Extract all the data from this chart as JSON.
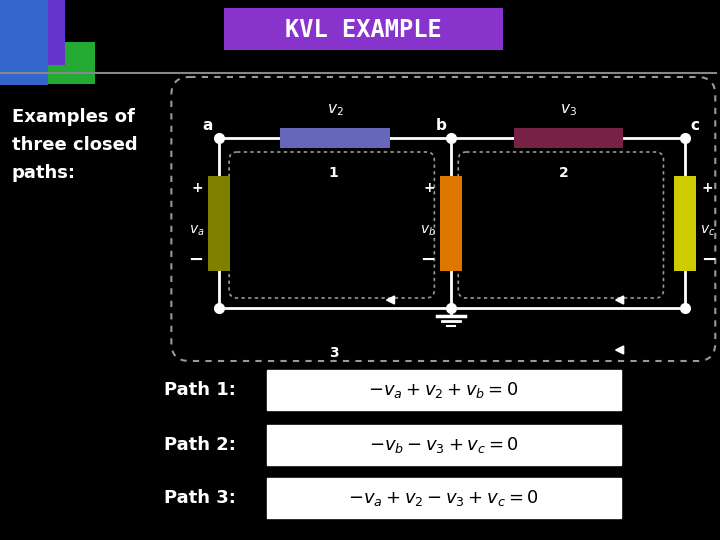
{
  "title": "KVL EXAMPLE",
  "title_bg": "#8833cc",
  "bg_color": "#000000",
  "text_color": "#ffffff",
  "left_text": "Examples of\nthree closed\npaths:",
  "path_labels": [
    "Path 1:",
    "Path 2:",
    "Path 3:"
  ],
  "equations": [
    "$-v_a + v_2 + v_b = 0$",
    "$-v_b - v_3 + v_c = 0$",
    "$-v_a + v_2 - v_3 + v_c = 0$"
  ],
  "resistor_colors": {
    "va": "#808000",
    "v2_top": "#6666bb",
    "vb": "#dd7700",
    "v3_top": "#772244",
    "vc": "#cccc00"
  },
  "corner_colors": [
    "#6633cc",
    "#3366cc",
    "#22aa33"
  ]
}
